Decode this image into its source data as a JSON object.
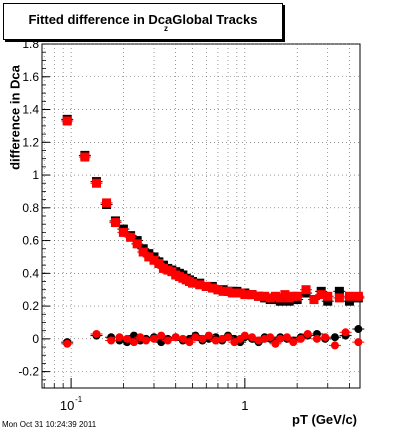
{
  "chart_data": {
    "type": "scatter",
    "title": "Fitted difference in Dca",
    "title_subscript": "z",
    "title_suffix": "Global Tracks",
    "xlabel": "pT (GeV/c)",
    "ylabel": "difference in Dca",
    "xscale": "log",
    "xlim": [
      0.068,
      4.6
    ],
    "ylim": [
      -0.3,
      1.8
    ],
    "x_tick_labels": [
      "10",
      "-1",
      "1"
    ],
    "y_tick_labels": [
      "-0.2",
      "0",
      "0.2",
      "0.4",
      "0.6",
      "0.8",
      "1",
      "1.2",
      "1.4",
      "1.6",
      "1.8"
    ],
    "grid": true,
    "series": [
      {
        "marker": "square",
        "color": "#000000",
        "x": [
          0.095,
          0.12,
          0.14,
          0.16,
          0.18,
          0.2,
          0.22,
          0.24,
          0.26,
          0.28,
          0.3,
          0.32,
          0.34,
          0.36,
          0.38,
          0.4,
          0.42,
          0.44,
          0.46,
          0.48,
          0.5,
          0.55,
          0.6,
          0.65,
          0.7,
          0.75,
          0.8,
          0.85,
          0.9,
          0.95,
          1.0,
          1.1,
          1.2,
          1.3,
          1.4,
          1.5,
          1.6,
          1.7,
          1.8,
          1.9,
          2.0,
          2.25,
          2.5,
          2.75,
          3.0,
          3.5,
          4.0,
          4.5
        ],
        "y": [
          1.34,
          1.12,
          0.96,
          0.82,
          0.72,
          0.67,
          0.63,
          0.6,
          0.55,
          0.52,
          0.5,
          0.47,
          0.45,
          0.43,
          0.42,
          0.41,
          0.4,
          0.39,
          0.37,
          0.36,
          0.35,
          0.34,
          0.32,
          0.32,
          0.3,
          0.3,
          0.29,
          0.29,
          0.29,
          0.28,
          0.28,
          0.27,
          0.26,
          0.25,
          0.24,
          0.24,
          0.23,
          0.24,
          0.23,
          0.24,
          0.24,
          0.28,
          0.24,
          0.29,
          0.23,
          0.29,
          0.23,
          0.25
        ]
      },
      {
        "marker": "square",
        "color": "#ff0000",
        "x": [
          0.095,
          0.12,
          0.14,
          0.16,
          0.18,
          0.2,
          0.22,
          0.24,
          0.26,
          0.28,
          0.3,
          0.32,
          0.34,
          0.36,
          0.38,
          0.4,
          0.42,
          0.44,
          0.46,
          0.48,
          0.5,
          0.55,
          0.6,
          0.65,
          0.7,
          0.75,
          0.8,
          0.85,
          0.9,
          0.95,
          1.0,
          1.1,
          1.2,
          1.3,
          1.4,
          1.5,
          1.6,
          1.7,
          1.8,
          1.9,
          2.0,
          2.25,
          2.5,
          2.75,
          3.0,
          3.5,
          4.0,
          4.5
        ],
        "y": [
          1.33,
          1.11,
          0.95,
          0.83,
          0.71,
          0.65,
          0.62,
          0.58,
          0.53,
          0.5,
          0.48,
          0.46,
          0.43,
          0.42,
          0.41,
          0.39,
          0.38,
          0.37,
          0.36,
          0.35,
          0.34,
          0.33,
          0.32,
          0.31,
          0.3,
          0.29,
          0.29,
          0.28,
          0.28,
          0.28,
          0.27,
          0.27,
          0.26,
          0.26,
          0.25,
          0.26,
          0.25,
          0.27,
          0.25,
          0.26,
          0.26,
          0.3,
          0.24,
          0.27,
          0.26,
          0.25,
          0.26,
          0.26
        ]
      },
      {
        "marker": "circle",
        "color": "#000000",
        "x": [
          0.095,
          0.14,
          0.17,
          0.19,
          0.21,
          0.23,
          0.25,
          0.27,
          0.3,
          0.33,
          0.36,
          0.4,
          0.44,
          0.48,
          0.52,
          0.57,
          0.62,
          0.68,
          0.74,
          0.8,
          0.87,
          0.94,
          1.0,
          1.1,
          1.2,
          1.3,
          1.4,
          1.5,
          1.6,
          1.75,
          1.9,
          2.1,
          2.3,
          2.6,
          2.9,
          3.3,
          3.8,
          4.5
        ],
        "y": [
          -0.02,
          0.02,
          0.01,
          -0.01,
          -0.02,
          0.02,
          -0.01,
          0.0,
          0.01,
          -0.02,
          0.0,
          0.01,
          -0.01,
          0.0,
          0.02,
          -0.01,
          0.0,
          0.01,
          -0.01,
          0.02,
          0.0,
          -0.02,
          0.01,
          0.0,
          -0.02,
          0.01,
          0.0,
          -0.01,
          0.01,
          0.0,
          -0.01,
          0.01,
          0.02,
          0.03,
          0.0,
          0.01,
          0.02,
          0.06
        ]
      },
      {
        "marker": "circle",
        "color": "#ff0000",
        "x": [
          0.095,
          0.14,
          0.17,
          0.19,
          0.21,
          0.23,
          0.25,
          0.27,
          0.3,
          0.33,
          0.36,
          0.4,
          0.44,
          0.48,
          0.52,
          0.57,
          0.62,
          0.68,
          0.74,
          0.8,
          0.87,
          0.94,
          1.0,
          1.1,
          1.2,
          1.3,
          1.4,
          1.5,
          1.6,
          1.75,
          1.9,
          2.1,
          2.3,
          2.6,
          2.9,
          3.3,
          3.8,
          4.5
        ],
        "y": [
          -0.03,
          0.03,
          -0.01,
          0.01,
          0.0,
          -0.02,
          0.01,
          -0.01,
          0.0,
          0.02,
          -0.01,
          0.01,
          0.0,
          -0.02,
          0.01,
          0.0,
          0.02,
          -0.01,
          0.0,
          0.01,
          -0.02,
          0.0,
          0.02,
          0.01,
          -0.01,
          0.0,
          0.01,
          -0.03,
          0.0,
          0.01,
          -0.02,
          0.0,
          0.03,
          0.0,
          0.01,
          -0.04,
          0.04,
          -0.02
        ]
      }
    ]
  },
  "footer": {
    "timestamp": "Mon Oct 31 10:24:39 2011"
  }
}
